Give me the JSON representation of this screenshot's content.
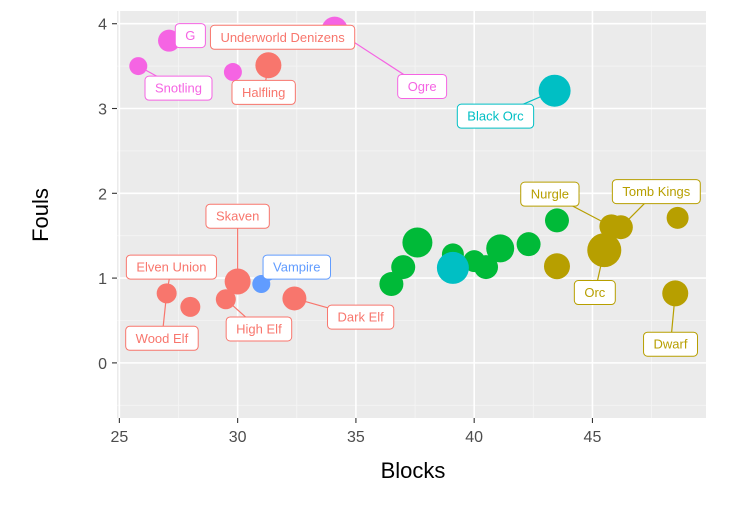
{
  "chart_data": {
    "type": "scatter",
    "xlabel": "Blocks",
    "ylabel": "Fouls",
    "xlim": [
      24.9,
      49.8
    ],
    "ylim": [
      -0.65,
      4.15
    ],
    "x_ticks": [
      25,
      30,
      35,
      40,
      45
    ],
    "y_ticks": [
      0,
      1,
      2,
      3,
      4
    ],
    "grid": true,
    "legend": "none",
    "colors": {
      "red": "#F8766D",
      "olive": "#B79F00",
      "green": "#00BA38",
      "teal": "#00BFC4",
      "blue": "#619CFF",
      "magenta": "#F564E3"
    },
    "points": [
      {
        "x": 27.0,
        "y": 0.82,
        "size": 10,
        "color": "red"
      },
      {
        "x": 28.0,
        "y": 0.66,
        "size": 10,
        "color": "red"
      },
      {
        "x": 29.5,
        "y": 0.75,
        "size": 10,
        "color": "red"
      },
      {
        "x": 30.0,
        "y": 0.96,
        "size": 13,
        "color": "red"
      },
      {
        "x": 32.4,
        "y": 0.76,
        "size": 12,
        "color": "red"
      },
      {
        "x": 31.0,
        "y": 0.93,
        "size": 9,
        "color": "blue"
      },
      {
        "x": 31.3,
        "y": 3.51,
        "size": 13,
        "color": "red"
      },
      {
        "x": 25.8,
        "y": 3.5,
        "size": 9,
        "color": "magenta"
      },
      {
        "x": 27.1,
        "y": 3.8,
        "size": 11,
        "color": "magenta"
      },
      {
        "x": 29.8,
        "y": 3.43,
        "size": 9,
        "color": "magenta"
      },
      {
        "x": 34.1,
        "y": 3.93,
        "size": 13,
        "color": "magenta"
      },
      {
        "x": 36.5,
        "y": 0.93,
        "size": 12,
        "color": "green"
      },
      {
        "x": 37.0,
        "y": 1.13,
        "size": 12,
        "color": "green"
      },
      {
        "x": 37.6,
        "y": 1.42,
        "size": 15,
        "color": "green"
      },
      {
        "x": 39.1,
        "y": 1.28,
        "size": 11,
        "color": "green"
      },
      {
        "x": 40.0,
        "y": 1.2,
        "size": 11,
        "color": "green"
      },
      {
        "x": 40.5,
        "y": 1.13,
        "size": 12,
        "color": "green"
      },
      {
        "x": 41.1,
        "y": 1.35,
        "size": 14,
        "color": "green"
      },
      {
        "x": 42.3,
        "y": 1.4,
        "size": 12,
        "color": "green"
      },
      {
        "x": 43.5,
        "y": 1.68,
        "size": 12,
        "color": "green"
      },
      {
        "x": 39.1,
        "y": 1.12,
        "size": 16,
        "color": "teal"
      },
      {
        "x": 43.4,
        "y": 3.21,
        "size": 16,
        "color": "teal"
      },
      {
        "x": 43.5,
        "y": 1.14,
        "size": 13,
        "color": "olive"
      },
      {
        "x": 45.5,
        "y": 1.33,
        "size": 17,
        "color": "olive"
      },
      {
        "x": 45.8,
        "y": 1.61,
        "size": 12,
        "color": "olive"
      },
      {
        "x": 46.2,
        "y": 1.6,
        "size": 12,
        "color": "olive"
      },
      {
        "x": 48.6,
        "y": 1.71,
        "size": 11,
        "color": "olive"
      },
      {
        "x": 48.5,
        "y": 0.82,
        "size": 13,
        "color": "olive"
      }
    ],
    "labels": [
      {
        "text": "Wood Elf",
        "x": 26.8,
        "y": 0.29,
        "color": "red",
        "target": [
          27.0,
          0.82
        ]
      },
      {
        "text": "Elven Union",
        "x": 27.2,
        "y": 1.13,
        "color": "red",
        "target": [
          27.0,
          0.82
        ]
      },
      {
        "text": "Skaven",
        "x": 30.0,
        "y": 1.73,
        "color": "red",
        "target": [
          30.0,
          0.96
        ]
      },
      {
        "text": "High Elf",
        "x": 30.9,
        "y": 0.4,
        "color": "red",
        "target": [
          29.5,
          0.75
        ]
      },
      {
        "text": "Dark Elf",
        "x": 35.2,
        "y": 0.54,
        "color": "red",
        "target": [
          32.4,
          0.76
        ]
      },
      {
        "text": "Vampire",
        "x": 32.5,
        "y": 1.13,
        "color": "blue",
        "target": [
          31.0,
          0.93
        ]
      },
      {
        "text": "Snotling",
        "x": 27.5,
        "y": 3.24,
        "color": "magenta",
        "target": [
          25.8,
          3.5
        ]
      },
      {
        "text": "G",
        "x": 28.0,
        "y": 3.86,
        "color": "magenta",
        "target": [
          27.1,
          3.8
        ]
      },
      {
        "text": "Halfling",
        "x": 31.1,
        "y": 3.19,
        "color": "red",
        "target": [
          31.3,
          3.51
        ]
      },
      {
        "text": "Underworld Denizens",
        "x": 31.9,
        "y": 3.84,
        "color": "red",
        "target": [
          31.9,
          3.84
        ]
      },
      {
        "text": "Ogre",
        "x": 37.8,
        "y": 3.26,
        "color": "magenta",
        "target": [
          34.1,
          3.93
        ]
      },
      {
        "text": "Black Orc",
        "x": 40.9,
        "y": 2.91,
        "color": "teal",
        "target": [
          43.4,
          3.21
        ]
      },
      {
        "text": "Nurgle",
        "x": 43.2,
        "y": 1.99,
        "color": "olive",
        "target": [
          45.8,
          1.61
        ]
      },
      {
        "text": "Tomb Kings",
        "x": 47.7,
        "y": 2.02,
        "color": "olive",
        "target": [
          46.2,
          1.6
        ]
      },
      {
        "text": "Orc",
        "x": 45.1,
        "y": 0.83,
        "color": "olive",
        "target": [
          45.5,
          1.33
        ]
      },
      {
        "text": "Dwarf",
        "x": 48.3,
        "y": 0.22,
        "color": "olive",
        "target": [
          48.5,
          0.82
        ]
      }
    ]
  }
}
